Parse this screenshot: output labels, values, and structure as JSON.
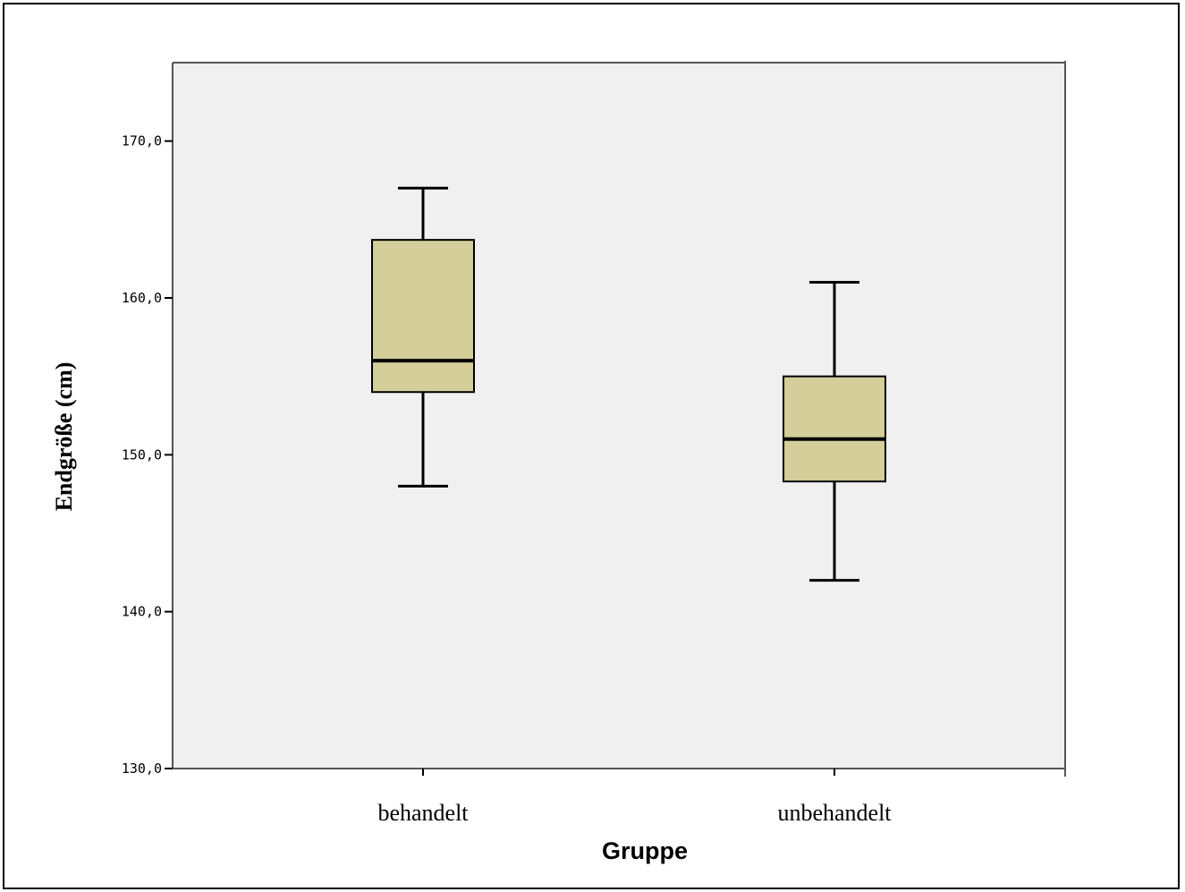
{
  "chart_data": {
    "type": "boxplot",
    "xlabel": "Gruppe",
    "ylabel": "Endgröße (cm)",
    "ylim": [
      130,
      175
    ],
    "yticks": [
      130,
      140,
      150,
      160,
      170
    ],
    "ytick_labels": [
      "130,0",
      "140,0",
      "150,0",
      "160,0",
      "170,0"
    ],
    "categories": [
      "behandelt",
      "unbehandelt"
    ],
    "boxes": [
      {
        "category": "behandelt",
        "min": 148,
        "q1": 154,
        "median": 156,
        "q3": 163.7,
        "max": 167
      },
      {
        "category": "unbehandelt",
        "min": 142,
        "q1": 148.3,
        "median": 151,
        "q3": 155,
        "max": 161
      }
    ],
    "grid": false,
    "legend": "none",
    "colors": {
      "box_fill": "#d3ce9a",
      "plot_background": "#f0f0f0",
      "line": "#000000"
    }
  }
}
